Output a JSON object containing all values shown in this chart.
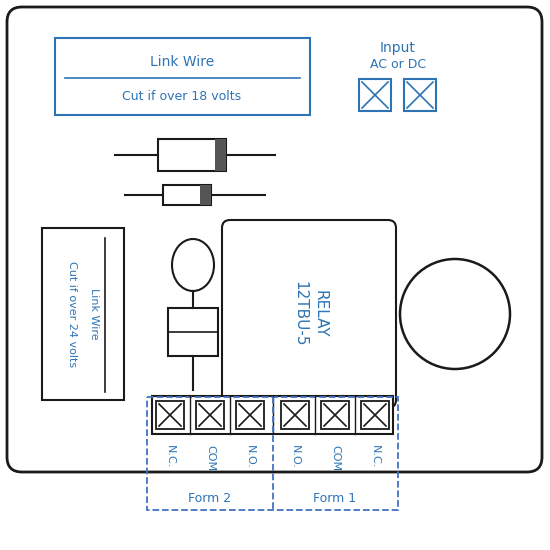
{
  "bg_color": "#ffffff",
  "border_color": "#1a1a1a",
  "blue": "#2e74b5",
  "dblue": "#4472c4",
  "gray": "#888888",
  "link_wire_top_text1": "Link Wire",
  "link_wire_top_text2": "Cut if over 18 volts",
  "input_text1": "Input",
  "input_text2": "AC or DC",
  "link_wire_left_text1": "Link Wire",
  "link_wire_left_text2": "Cut if over 24 volts",
  "relay_text1": "RELAY",
  "relay_text2": "12TBU-5",
  "terminal_labels": [
    "N.C.",
    "COM",
    "N.O.",
    "N.O.",
    "COM",
    "N.C."
  ],
  "form_labels": [
    "Form 2",
    "Form 1"
  ],
  "figsize": [
    5.5,
    5.5
  ],
  "dpi": 100
}
